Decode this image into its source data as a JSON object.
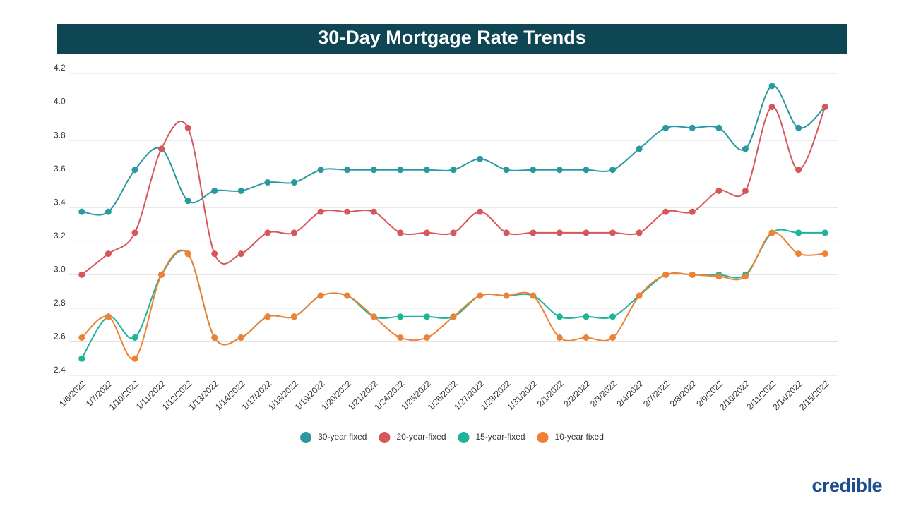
{
  "chart_data": {
    "type": "line",
    "title": "30-Day Mortgage Rate Trends",
    "logo": "credible",
    "categories": [
      "1/6/2022",
      "1/7/2022",
      "1/10/2022",
      "1/11/2022",
      "1/12/2022",
      "1/13/2022",
      "1/14/2022",
      "1/17/2022",
      "1/18/2022",
      "1/19/2022",
      "1/20/2022",
      "1/21/2022",
      "1/24/2022",
      "1/25/2022",
      "1/26/2022",
      "1/27/2022",
      "1/28/2022",
      "1/31/2022",
      "2/1/2022",
      "2/2/2022",
      "2/3/2022",
      "2/4/2022",
      "2/7/2022",
      "2/8/2022",
      "2/9/2022",
      "2/10/2022",
      "2/11/2022",
      "2/14/2022",
      "2/15/2022"
    ],
    "series": [
      {
        "name": "30-year fixed",
        "color": "#2a98a0",
        "values": [
          3.375,
          3.375,
          3.625,
          3.75,
          3.44,
          3.5,
          3.5,
          3.55,
          3.55,
          3.625,
          3.625,
          3.625,
          3.625,
          3.625,
          3.625,
          3.69,
          3.625,
          3.625,
          3.625,
          3.625,
          3.625,
          3.75,
          3.875,
          3.875,
          3.875,
          3.75,
          4.125,
          3.875,
          4.0
        ]
      },
      {
        "name": "20-year-fixed",
        "color": "#d6575a",
        "values": [
          3.0,
          3.125,
          3.25,
          3.75,
          3.875,
          3.125,
          3.125,
          3.25,
          3.25,
          3.375,
          3.375,
          3.375,
          3.25,
          3.25,
          3.25,
          3.375,
          3.25,
          3.25,
          3.25,
          3.25,
          3.25,
          3.25,
          3.375,
          3.375,
          3.5,
          3.5,
          4.0,
          3.625,
          4.0
        ]
      },
      {
        "name": "15-year-fixed",
        "color": "#1db49a",
        "values": [
          2.5,
          2.75,
          2.625,
          3.0,
          3.125,
          2.625,
          2.625,
          2.75,
          2.75,
          2.875,
          2.875,
          2.75,
          2.75,
          2.75,
          2.75,
          2.875,
          2.875,
          2.875,
          2.75,
          2.75,
          2.75,
          2.875,
          3.0,
          3.0,
          3.0,
          3.0,
          3.25,
          3.25,
          3.25
        ]
      },
      {
        "name": "10-year fixed",
        "color": "#ee8133",
        "values": [
          2.625,
          2.75,
          2.5,
          3.0,
          3.125,
          2.625,
          2.625,
          2.75,
          2.75,
          2.875,
          2.875,
          2.75,
          2.625,
          2.625,
          2.75,
          2.875,
          2.875,
          2.875,
          2.625,
          2.625,
          2.625,
          2.875,
          3.0,
          3.0,
          2.99,
          2.99,
          3.25,
          3.125,
          3.125
        ]
      }
    ],
    "ylim": [
      2.4,
      4.2
    ],
    "yticks": [
      2.4,
      2.6,
      2.8,
      {
        "value": 3,
        "label": "3.0"
      },
      3.2,
      3.4,
      3.6,
      3.8,
      {
        "value": 4,
        "label": "4.0"
      },
      4.2
    ],
    "grid": true
  }
}
